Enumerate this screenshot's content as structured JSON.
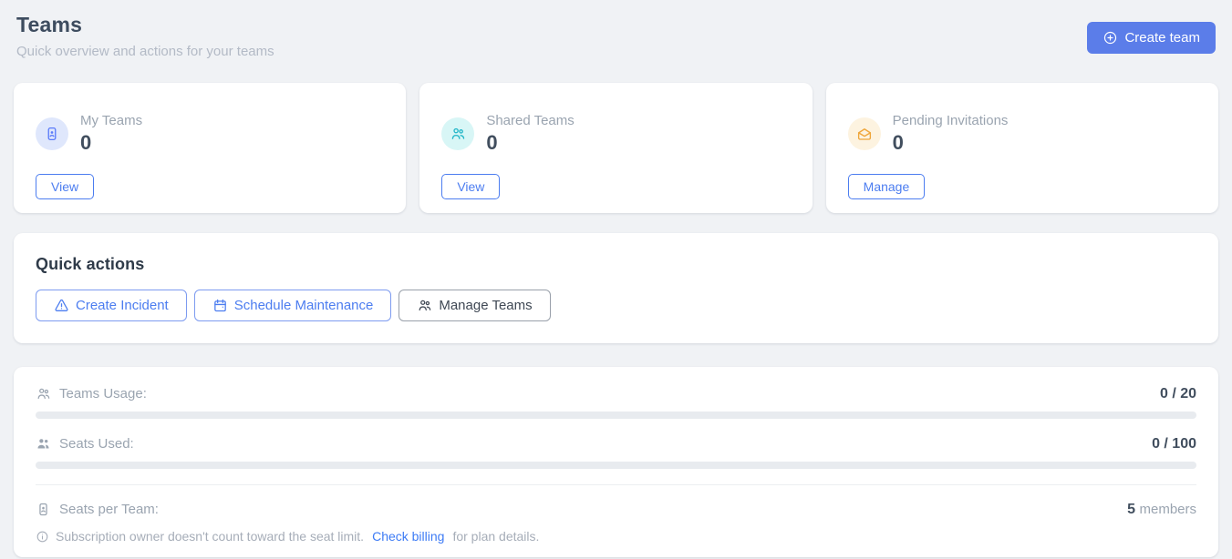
{
  "page": {
    "title": "Teams",
    "subtitle": "Quick overview and actions for your teams",
    "create_team_label": "Create team"
  },
  "stat_cards": [
    {
      "label": "My Teams",
      "value": "0",
      "action_label": "View",
      "icon": "id-badge-icon"
    },
    {
      "label": "Shared Teams",
      "value": "0",
      "action_label": "View",
      "icon": "users-icon"
    },
    {
      "label": "Pending Invitations",
      "value": "0",
      "action_label": "Manage",
      "icon": "mail-open-icon"
    }
  ],
  "quick_actions": {
    "title": "Quick actions",
    "buttons": [
      {
        "label": "Create Incident",
        "icon": "alert-triangle-icon"
      },
      {
        "label": "Schedule Maintenance",
        "icon": "calendar-icon"
      },
      {
        "label": "Manage Teams",
        "icon": "users-icon"
      }
    ]
  },
  "usage": {
    "teams_usage": {
      "label": "Teams Usage:",
      "value": "0 / 20",
      "used": 0,
      "total": 20,
      "percent": 0
    },
    "seats_used": {
      "label": "Seats Used:",
      "value": "0 / 100",
      "used": 0,
      "total": 100,
      "percent": 0
    },
    "seats_per_team": {
      "label": "Seats per Team:",
      "value": "5",
      "unit": "members"
    },
    "note": {
      "text_before": "Subscription owner doesn't count toward the seat limit.",
      "link_label": "Check billing",
      "text_after": "for plan details."
    }
  },
  "colors": {
    "page-bg": "#f0f2f5",
    "card-bg": "#ffffff",
    "accent": "#5b7de9",
    "accent-border": "#7d9bf0",
    "link": "#4c7df0",
    "link-bright": "#3d7bf5",
    "title": "#3d4c5f",
    "subtitle": "#b3bac6",
    "muted": "#9aa4b0",
    "value": "#414e5e",
    "note": "#a6adb8",
    "progress-track": "#e8ebef",
    "divider": "#eceef1",
    "myteams-icon": "#5c7cfa",
    "myteams-icon-bg": "#dfe7fc",
    "shared-icon": "#27b8c9",
    "shared-icon-bg": "#d8f6f6",
    "pending-icon": "#efa63b",
    "pending-icon-bg": "#fdf3e0",
    "neutral-btn": "#3f4854",
    "neutral-btn-border": "#99a0aa"
  }
}
